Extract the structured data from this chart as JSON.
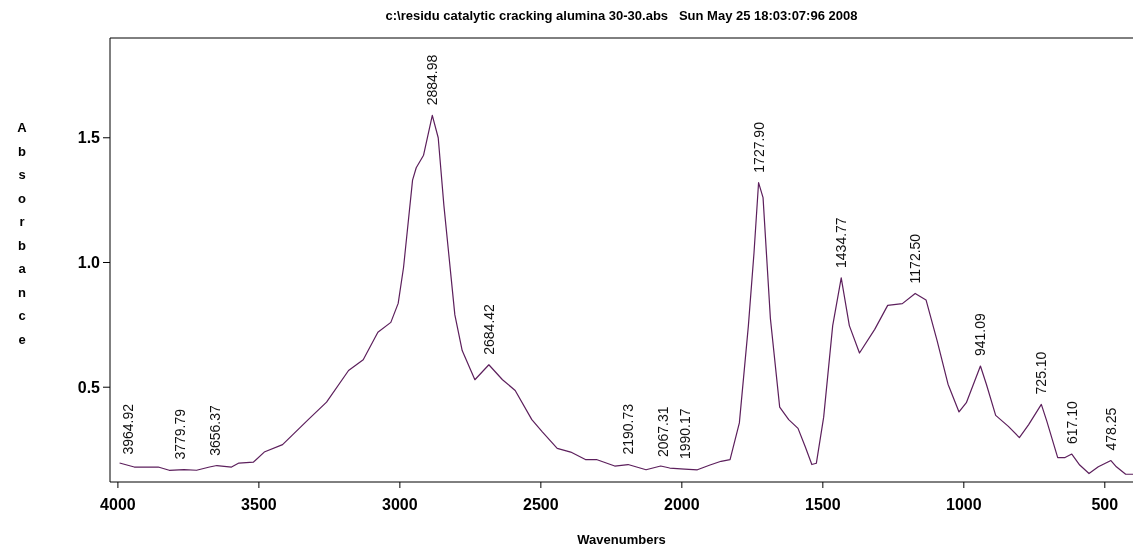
{
  "chart_data": {
    "type": "line",
    "title": "c:\\residu catalytic cracking alumina 30-30.abs   Sun May 25 18:03:07:96 2008",
    "xlabel": "Wavenumbers",
    "ylabel": "Absorbance",
    "xlim": [
      4028,
      400
    ],
    "ylim": [
      0.12,
      1.9
    ],
    "xticks": [
      4000,
      3500,
      3000,
      2500,
      2000,
      1500,
      1000,
      500
    ],
    "yticks": [
      {
        "value": 0.5,
        "label": "0.5"
      },
      {
        "value": 1.0,
        "label": "1.0"
      },
      {
        "value": 1.5,
        "label": "1.5"
      }
    ],
    "grid": false,
    "marker": "none",
    "line_style": "solid",
    "series": [
      {
        "color": "#5c1f5c",
        "x": [
          3994,
          3942,
          3857,
          3818,
          3766,
          3721,
          3675,
          3649,
          3597,
          3571,
          3519,
          3481,
          3416,
          3325,
          3260,
          3182,
          3130,
          3078,
          3032,
          3006,
          2987,
          2955,
          2942,
          2916,
          2884.98,
          2864,
          2844,
          2805,
          2779,
          2734,
          2684.42,
          2636,
          2591,
          2532,
          2494,
          2442,
          2394,
          2342,
          2303,
          2238,
          2190.73,
          2127,
          2075,
          2043,
          1990.17,
          1945,
          1900,
          1861,
          1829,
          1796,
          1764,
          1744,
          1727.9,
          1712,
          1686,
          1653,
          1621,
          1588,
          1562,
          1539,
          1523,
          1497,
          1465,
          1434.77,
          1406,
          1370,
          1316,
          1270,
          1218,
          1172.5,
          1134,
          1095,
          1056,
          1017,
          991,
          941.09,
          920,
          887,
          842,
          803,
          770,
          725.1,
          706,
          667,
          641,
          617.1,
          589,
          556,
          523,
          478.25,
          459,
          426,
          400
        ],
        "values": [
          0.196,
          0.18,
          0.18,
          0.167,
          0.17,
          0.167,
          0.18,
          0.186,
          0.18,
          0.196,
          0.2,
          0.24,
          0.27,
          0.37,
          0.44,
          0.567,
          0.61,
          0.72,
          0.76,
          0.836,
          0.98,
          1.33,
          1.38,
          1.43,
          1.59,
          1.5,
          1.23,
          0.79,
          0.647,
          0.53,
          0.59,
          0.53,
          0.487,
          0.37,
          0.32,
          0.255,
          0.24,
          0.21,
          0.21,
          0.184,
          0.19,
          0.169,
          0.184,
          0.176,
          0.172,
          0.169,
          0.188,
          0.203,
          0.21,
          0.357,
          0.747,
          1.04,
          1.32,
          1.26,
          0.776,
          0.42,
          0.37,
          0.335,
          0.26,
          0.19,
          0.195,
          0.38,
          0.747,
          0.938,
          0.747,
          0.637,
          0.732,
          0.828,
          0.835,
          0.876,
          0.85,
          0.688,
          0.512,
          0.401,
          0.438,
          0.585,
          0.512,
          0.387,
          0.343,
          0.298,
          0.35,
          0.431,
          0.365,
          0.218,
          0.218,
          0.232,
          0.188,
          0.154,
          0.181,
          0.206,
          0.181,
          0.151,
          0.151
        ]
      }
    ],
    "annotations": [
      {
        "text": "3964.92",
        "x": 3964.92,
        "y": 0.19
      },
      {
        "text": "3779.79",
        "x": 3779.79,
        "y": 0.17
      },
      {
        "text": "3656.37",
        "x": 3656.37,
        "y": 0.185
      },
      {
        "text": "2884.98",
        "x": 2884.98,
        "y": 1.59
      },
      {
        "text": "2684.42",
        "x": 2684.42,
        "y": 0.59
      },
      {
        "text": "2190.73",
        "x": 2190.73,
        "y": 0.19
      },
      {
        "text": "2067.31",
        "x": 2067.31,
        "y": 0.18
      },
      {
        "text": "1990.17",
        "x": 1990.17,
        "y": 0.172
      },
      {
        "text": "1727.90",
        "x": 1727.9,
        "y": 1.32
      },
      {
        "text": "1434.77",
        "x": 1434.77,
        "y": 0.938
      },
      {
        "text": "1172.50",
        "x": 1172.5,
        "y": 0.876
      },
      {
        "text": "941.09",
        "x": 941.09,
        "y": 0.585
      },
      {
        "text": "725.10",
        "x": 725.1,
        "y": 0.431
      },
      {
        "text": "617.10",
        "x": 617.1,
        "y": 0.232
      },
      {
        "text": "478.25",
        "x": 478.25,
        "y": 0.206
      }
    ]
  }
}
